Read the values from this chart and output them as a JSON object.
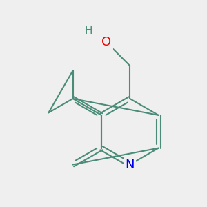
{
  "bg_color": "#efefef",
  "bond_color": "#4a8c78",
  "bond_width": 1.5,
  "atom_colors": {
    "N": "#0000ee",
    "O": "#ee0000",
    "H_color": "#4a8c78",
    "C": "#4a8c78"
  },
  "font_size_N": 13,
  "font_size_O": 13,
  "font_size_H": 11,
  "figsize": [
    3.0,
    3.0
  ],
  "dpi": 100
}
